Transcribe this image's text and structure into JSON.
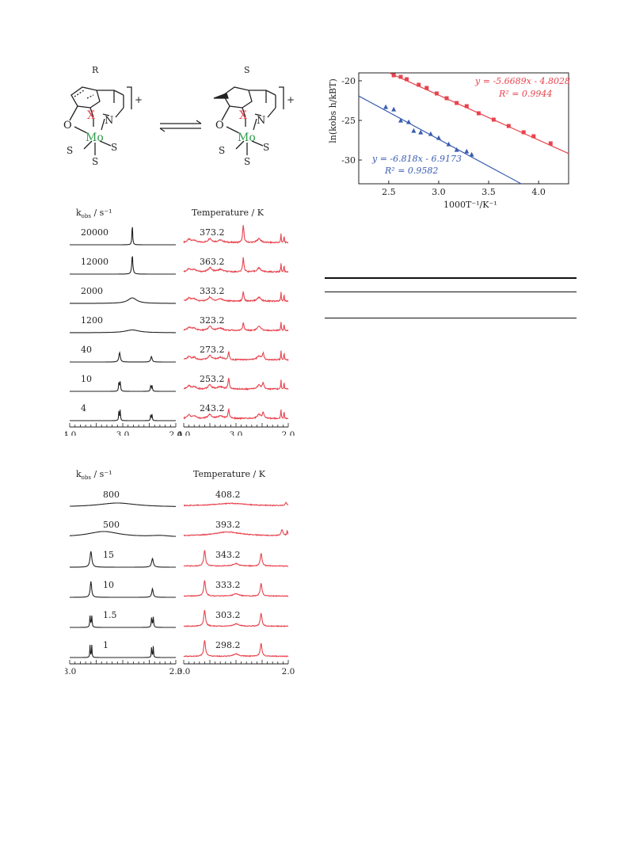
{
  "scheme": {
    "left_label": "R",
    "right_label": "S",
    "atoms": {
      "x": "X",
      "mo": "Mo",
      "n": "N",
      "o": "O",
      "s": "S"
    },
    "charge": "+"
  },
  "arrhenius": {
    "chart_data": {
      "type": "scatter",
      "xlabel": "1000T⁻¹/K⁻¹",
      "ylabel": "ln(kobs h/kBT)",
      "xlim": [
        2.2,
        4.3
      ],
      "ylim": [
        -33,
        -19
      ],
      "xticks": [
        "2.5",
        "3.0",
        "3.5",
        "4.0"
      ],
      "yticks": [
        "-20",
        "-25",
        "-30"
      ],
      "series": [
        {
          "color": "#e8434e",
          "marker": "square",
          "equation": "y = -5.6689x - 4.8028",
          "r2": "R² = 0.9944",
          "slope": -5.6689,
          "intercept": -4.8028,
          "x": [
            2.55,
            2.62,
            2.68,
            2.8,
            2.88,
            2.98,
            3.08,
            3.18,
            3.28,
            3.4,
            3.55,
            3.7,
            3.85,
            3.95,
            4.12
          ],
          "y": [
            -19.3,
            -19.5,
            -19.8,
            -20.5,
            -20.9,
            -21.6,
            -22.2,
            -22.8,
            -23.2,
            -24.1,
            -24.9,
            -25.7,
            -26.5,
            -27.0,
            -27.9
          ]
        },
        {
          "color": "#3a5db0",
          "marker": "triangle",
          "equation": "y = -6.818x - 6.9173",
          "r2": "R² = 0.9582",
          "slope": -6.818,
          "intercept": -6.9173,
          "x": [
            2.47,
            2.55,
            2.62,
            2.7,
            2.75,
            2.82,
            2.92,
            3.0,
            3.1,
            3.18,
            3.28,
            3.33
          ],
          "y": [
            -23.3,
            -23.6,
            -25.0,
            -25.2,
            -26.3,
            -26.5,
            -26.7,
            -27.2,
            -28.0,
            -28.7,
            -28.9,
            -29.3
          ]
        }
      ]
    }
  },
  "panel1": {
    "left_header": "k",
    "left_header_sub": "obs",
    "left_header_unit": " / s⁻¹",
    "right_header": "Temperature / K",
    "k_values": [
      "20000",
      "12000",
      "2000",
      "1200",
      "40",
      "10",
      "4"
    ],
    "temps": [
      "373.2",
      "363.2",
      "333.2",
      "323.2",
      "273.2",
      "253.2",
      "243.2"
    ],
    "left_axis": [
      "4.0",
      "3.0",
      "2.0"
    ],
    "right_axis": [
      "4.0",
      "3.0",
      "2.0"
    ]
  },
  "panel2": {
    "left_header": "k",
    "left_header_sub": "obs",
    "left_header_unit": " / s⁻¹",
    "right_header": "Temperature / K",
    "k_values": [
      "800",
      "500",
      "15",
      "10",
      "1.5",
      "1"
    ],
    "temps": [
      "408.2",
      "393.2",
      "343.2",
      "333.2",
      "303.2",
      "298.2"
    ],
    "left_axis": [
      "3.0",
      "2.0"
    ],
    "right_axis": [
      "3.0",
      "2.0"
    ]
  },
  "colors": {
    "black": "#222222",
    "red": "#e8434e",
    "blue": "#3a5db0",
    "green": "#2e9a48"
  }
}
